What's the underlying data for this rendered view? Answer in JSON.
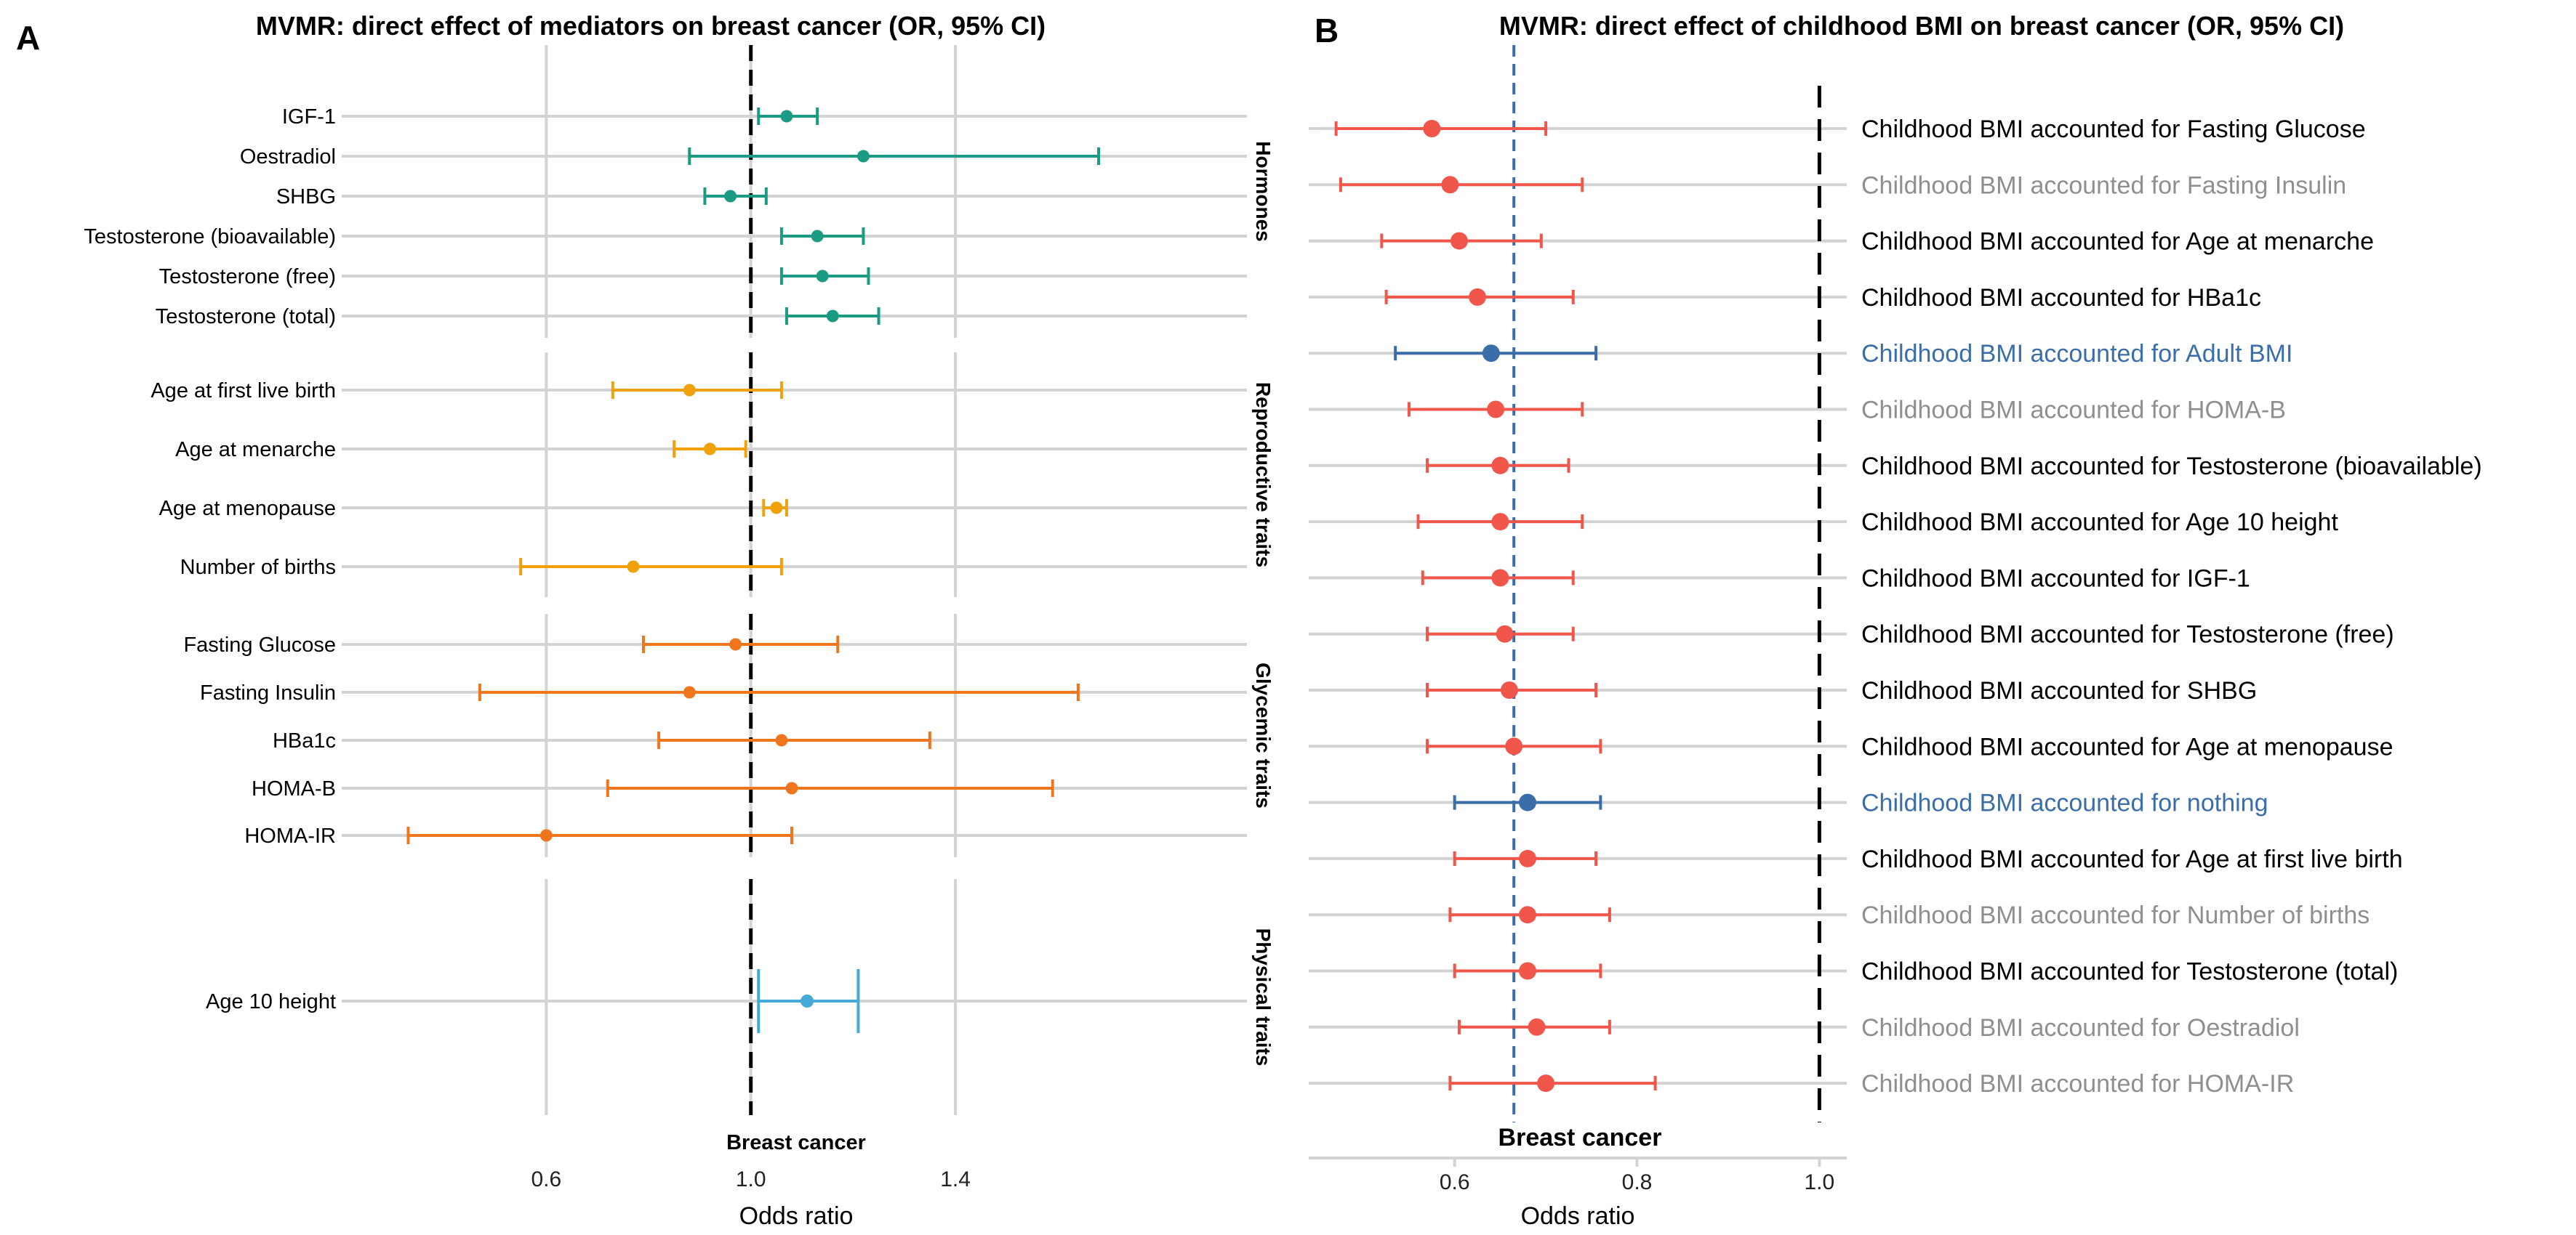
{
  "colors": {
    "Hormones": "#1b9a84",
    "Reproductive traits": "#f0a10b",
    "Glycemic traits": "#f0761d",
    "Physical traits": "#44aad8",
    "red": "#f0564a",
    "blue": "#3b6ea8",
    "label_black": "#000000",
    "label_grey": "#8f8f8f",
    "label_blue": "#3b6ea8",
    "grid": "#d3d3d3"
  },
  "chart_data": [
    {
      "type": "forest",
      "panel": "A",
      "title": "MVMR: direct effect of mediators on breast cancer (OR, 95% CI)",
      "xlabel": "Odds ratio",
      "xlim": [
        0.2,
        1.97
      ],
      "xticks": [
        0.6,
        1.0,
        1.4
      ],
      "xtick_labels": [
        "0.6",
        "1.0",
        "1.4"
      ],
      "reference_line": 1.0,
      "reference_label": "Breast cancer",
      "groups": [
        {
          "name": "Hormones",
          "rows": [
            {
              "label": "IGF-1",
              "or": 1.07,
              "lo": 1.015,
              "hi": 1.13
            },
            {
              "label": "Oestradiol",
              "or": 1.22,
              "lo": 0.88,
              "hi": 1.68
            },
            {
              "label": "SHBG",
              "or": 0.96,
              "lo": 0.91,
              "hi": 1.03
            },
            {
              "label": "Testosterone (bioavailable)",
              "or": 1.13,
              "lo": 1.06,
              "hi": 1.22
            },
            {
              "label": "Testosterone (free)",
              "or": 1.14,
              "lo": 1.06,
              "hi": 1.23
            },
            {
              "label": "Testosterone (total)",
              "or": 1.16,
              "lo": 1.07,
              "hi": 1.25
            }
          ]
        },
        {
          "name": "Reproductive traits",
          "rows": [
            {
              "label": "Age at first live birth",
              "or": 0.88,
              "lo": 0.73,
              "hi": 1.06
            },
            {
              "label": "Age at menarche",
              "or": 0.92,
              "lo": 0.85,
              "hi": 0.99
            },
            {
              "label": "Age at menopause",
              "or": 1.05,
              "lo": 1.025,
              "hi": 1.07
            },
            {
              "label": "Number of births",
              "or": 0.77,
              "lo": 0.55,
              "hi": 1.06
            }
          ]
        },
        {
          "name": "Glycemic traits",
          "rows": [
            {
              "label": "Fasting Glucose",
              "or": 0.97,
              "lo": 0.79,
              "hi": 1.17
            },
            {
              "label": "Fasting Insulin",
              "or": 0.88,
              "lo": 0.47,
              "hi": 1.64
            },
            {
              "label": "HBa1c",
              "or": 1.06,
              "lo": 0.82,
              "hi": 1.35
            },
            {
              "label": "HOMA-B",
              "or": 1.08,
              "lo": 0.72,
              "hi": 1.59
            },
            {
              "label": "HOMA-IR",
              "or": 0.6,
              "lo": 0.33,
              "hi": 1.08
            }
          ]
        },
        {
          "name": "Physical traits",
          "rows": [
            {
              "label": "Age 10 height",
              "or": 1.11,
              "lo": 1.015,
              "hi": 1.21
            }
          ]
        }
      ]
    },
    {
      "type": "forest",
      "panel": "B",
      "title": "MVMR: direct effect of childhood BMI on breast cancer (OR, 95% CI)",
      "xlabel": "Odds ratio",
      "xlim": [
        0.44,
        1.03
      ],
      "xticks": [
        0.6,
        0.8,
        1.0
      ],
      "xtick_labels": [
        "0.6",
        "0.8",
        "1.0"
      ],
      "reference_line": 1.0,
      "estimate_line": 0.665,
      "reference_label": "Breast cancer",
      "rows": [
        {
          "label": "Childhood BMI accounted for Fasting Glucose",
          "or": 0.575,
          "lo": 0.47,
          "hi": 0.7,
          "point": "red",
          "text": "label_black"
        },
        {
          "label": "Childhood BMI accounted for Fasting Insulin",
          "or": 0.595,
          "lo": 0.475,
          "hi": 0.74,
          "point": "red",
          "text": "label_grey"
        },
        {
          "label": "Childhood BMI accounted for Age at menarche",
          "or": 0.605,
          "lo": 0.52,
          "hi": 0.695,
          "point": "red",
          "text": "label_black"
        },
        {
          "label": "Childhood BMI accounted for HBa1c",
          "or": 0.625,
          "lo": 0.525,
          "hi": 0.73,
          "point": "red",
          "text": "label_black"
        },
        {
          "label": "Childhood BMI accounted for Adult BMI",
          "or": 0.64,
          "lo": 0.535,
          "hi": 0.755,
          "point": "blue",
          "text": "label_blue"
        },
        {
          "label": "Childhood BMI accounted for HOMA-B",
          "or": 0.645,
          "lo": 0.55,
          "hi": 0.74,
          "point": "red",
          "text": "label_grey"
        },
        {
          "label": "Childhood BMI accounted for Testosterone (bioavailable)",
          "or": 0.65,
          "lo": 0.57,
          "hi": 0.725,
          "point": "red",
          "text": "label_black"
        },
        {
          "label": "Childhood BMI accounted for Age 10 height",
          "or": 0.65,
          "lo": 0.56,
          "hi": 0.74,
          "point": "red",
          "text": "label_black"
        },
        {
          "label": "Childhood BMI accounted for IGF-1",
          "or": 0.65,
          "lo": 0.565,
          "hi": 0.73,
          "point": "red",
          "text": "label_black"
        },
        {
          "label": "Childhood BMI accounted for Testosterone (free)",
          "or": 0.655,
          "lo": 0.57,
          "hi": 0.73,
          "point": "red",
          "text": "label_black"
        },
        {
          "label": "Childhood BMI accounted for SHBG",
          "or": 0.66,
          "lo": 0.57,
          "hi": 0.755,
          "point": "red",
          "text": "label_black"
        },
        {
          "label": "Childhood BMI accounted for Age at menopause",
          "or": 0.665,
          "lo": 0.57,
          "hi": 0.76,
          "point": "red",
          "text": "label_black"
        },
        {
          "label": "Childhood BMI accounted for nothing",
          "or": 0.68,
          "lo": 0.6,
          "hi": 0.76,
          "point": "blue",
          "text": "label_blue"
        },
        {
          "label": "Childhood BMI accounted for Age at first live birth",
          "or": 0.68,
          "lo": 0.6,
          "hi": 0.755,
          "point": "red",
          "text": "label_black"
        },
        {
          "label": "Childhood BMI accounted for Number of births",
          "or": 0.68,
          "lo": 0.595,
          "hi": 0.77,
          "point": "red",
          "text": "label_grey"
        },
        {
          "label": "Childhood BMI accounted for Testosterone (total)",
          "or": 0.68,
          "lo": 0.6,
          "hi": 0.76,
          "point": "red",
          "text": "label_black"
        },
        {
          "label": "Childhood BMI accounted for Oestradiol",
          "or": 0.69,
          "lo": 0.605,
          "hi": 0.77,
          "point": "red",
          "text": "label_grey"
        },
        {
          "label": "Childhood BMI accounted for HOMA-IR",
          "or": 0.7,
          "lo": 0.595,
          "hi": 0.82,
          "point": "red",
          "text": "label_grey"
        }
      ]
    }
  ]
}
